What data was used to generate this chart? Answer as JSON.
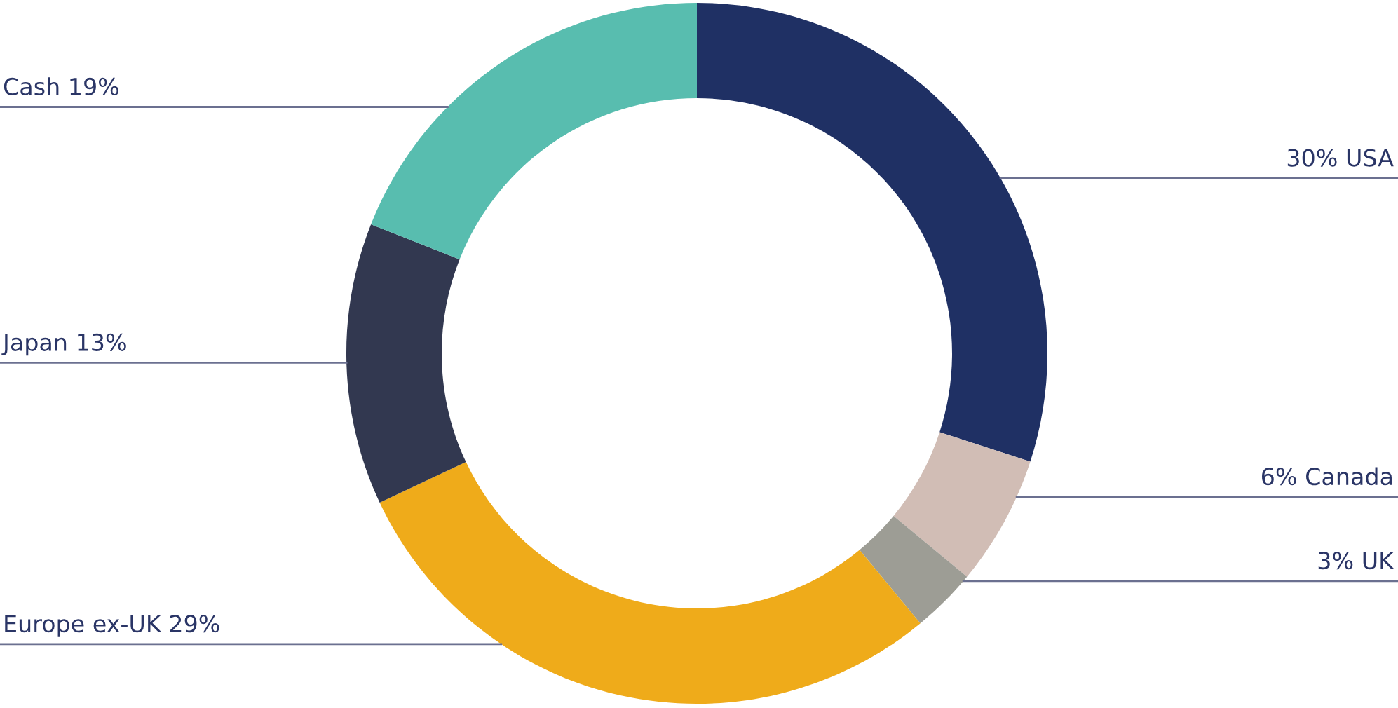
{
  "chart_data": {
    "type": "donut",
    "categories": [
      "USA",
      "Canada",
      "UK",
      "Europe ex-UK",
      "Japan",
      "Cash"
    ],
    "values": [
      30,
      6,
      3,
      29,
      13,
      19
    ],
    "colors": [
      "#1f3064",
      "#d1bdb5",
      "#9d9d95",
      "#efab1a",
      "#323850",
      "#58bdaf"
    ],
    "value_labels": [
      "30%",
      "6%",
      "3%",
      "29%",
      "13%",
      "19%"
    ],
    "legend": false
  }
}
